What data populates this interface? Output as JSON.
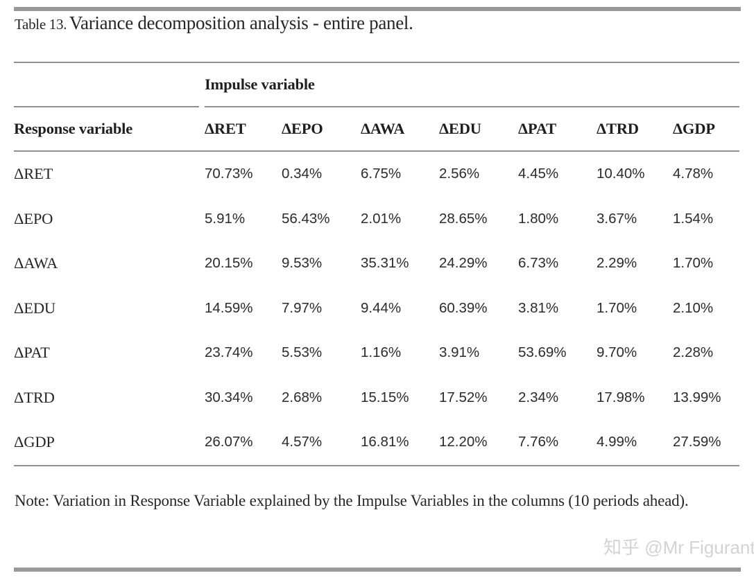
{
  "caption": {
    "label": "Table 13.",
    "text": "Variance decomposition analysis - entire panel."
  },
  "table": {
    "impulse_header": "Impulse variable",
    "response_header": "Response variable",
    "columns": [
      "ΔRET",
      "ΔEPO",
      "ΔAWA",
      "ΔEDU",
      "ΔPAT",
      "ΔTRD",
      "ΔGDP"
    ],
    "rows": [
      {
        "label": "ΔRET",
        "values": [
          "70.73%",
          "0.34%",
          "6.75%",
          "2.56%",
          "4.45%",
          "10.40%",
          "4.78%"
        ]
      },
      {
        "label": "ΔEPO",
        "values": [
          "5.91%",
          "56.43%",
          "2.01%",
          "28.65%",
          "1.80%",
          "3.67%",
          "1.54%"
        ]
      },
      {
        "label": "ΔAWA",
        "values": [
          "20.15%",
          "9.53%",
          "35.31%",
          "24.29%",
          "6.73%",
          "2.29%",
          "1.70%"
        ]
      },
      {
        "label": "ΔEDU",
        "values": [
          "14.59%",
          "7.97%",
          "9.44%",
          "60.39%",
          "3.81%",
          "1.70%",
          "2.10%"
        ]
      },
      {
        "label": "ΔPAT",
        "values": [
          "23.74%",
          "5.53%",
          "1.16%",
          "3.91%",
          "53.69%",
          "9.70%",
          "2.28%"
        ]
      },
      {
        "label": "ΔTRD",
        "values": [
          "30.34%",
          "2.68%",
          "15.15%",
          "17.52%",
          "2.34%",
          "17.98%",
          "13.99%"
        ]
      },
      {
        "label": "ΔGDP",
        "values": [
          "26.07%",
          "4.57%",
          "16.81%",
          "12.20%",
          "7.76%",
          "4.99%",
          "27.59%"
        ]
      }
    ]
  },
  "note": "Note: Variation in Response Variable explained by the Impulse Variables in the columns (10 periods ahead).",
  "watermark": "知乎 @Mr Figurant",
  "colors": {
    "text": "#262626",
    "rule": "#8f8f8f",
    "accent_bar": "#999999",
    "watermark": "#d3d3d3"
  }
}
